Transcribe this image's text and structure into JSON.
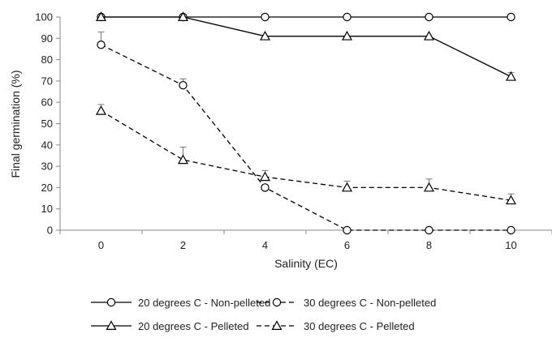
{
  "chart_data": {
    "type": "line",
    "title": "",
    "xlabel": "Salinity (EC)",
    "ylabel": "Final germination (%)",
    "x": [
      0,
      2,
      4,
      6,
      8,
      10
    ],
    "x_tick_labels": [
      "0",
      "2",
      "4",
      "6",
      "8",
      "10"
    ],
    "y_tick_labels": [
      "0",
      "10",
      "20",
      "30",
      "40",
      "50",
      "60",
      "70",
      "80",
      "90",
      "100"
    ],
    "xlim": [
      -1,
      11
    ],
    "ylim": [
      0,
      100
    ],
    "grid": false,
    "legend_position": "bottom",
    "series": [
      {
        "name": "20 degrees C - Non-pelleted",
        "values": [
          100,
          100,
          100,
          100,
          100,
          100
        ],
        "errors": [
          0,
          0,
          0,
          0,
          0,
          0
        ],
        "marker": "circle",
        "line_style": "solid"
      },
      {
        "name": "30 degrees C - Non-pelleted",
        "values": [
          87,
          68,
          20,
          0,
          0,
          0
        ],
        "errors": [
          6,
          3,
          0,
          0,
          0,
          0
        ],
        "marker": "circle",
        "line_style": "dashed"
      },
      {
        "name": "20 degrees C - Pelleted",
        "values": [
          100,
          100,
          91,
          91,
          91,
          72
        ],
        "errors": [
          0,
          0,
          0,
          0,
          0,
          2
        ],
        "marker": "triangle",
        "line_style": "solid"
      },
      {
        "name": "30 degrees C - Pelleted",
        "values": [
          56,
          33,
          25,
          20,
          20,
          14
        ],
        "errors": [
          3,
          6,
          3,
          3,
          4,
          3
        ],
        "marker": "triangle",
        "line_style": "dashed"
      }
    ],
    "colors": {
      "line": "#000000",
      "axis": "#888888",
      "marker_fill": "#ffffff"
    }
  }
}
